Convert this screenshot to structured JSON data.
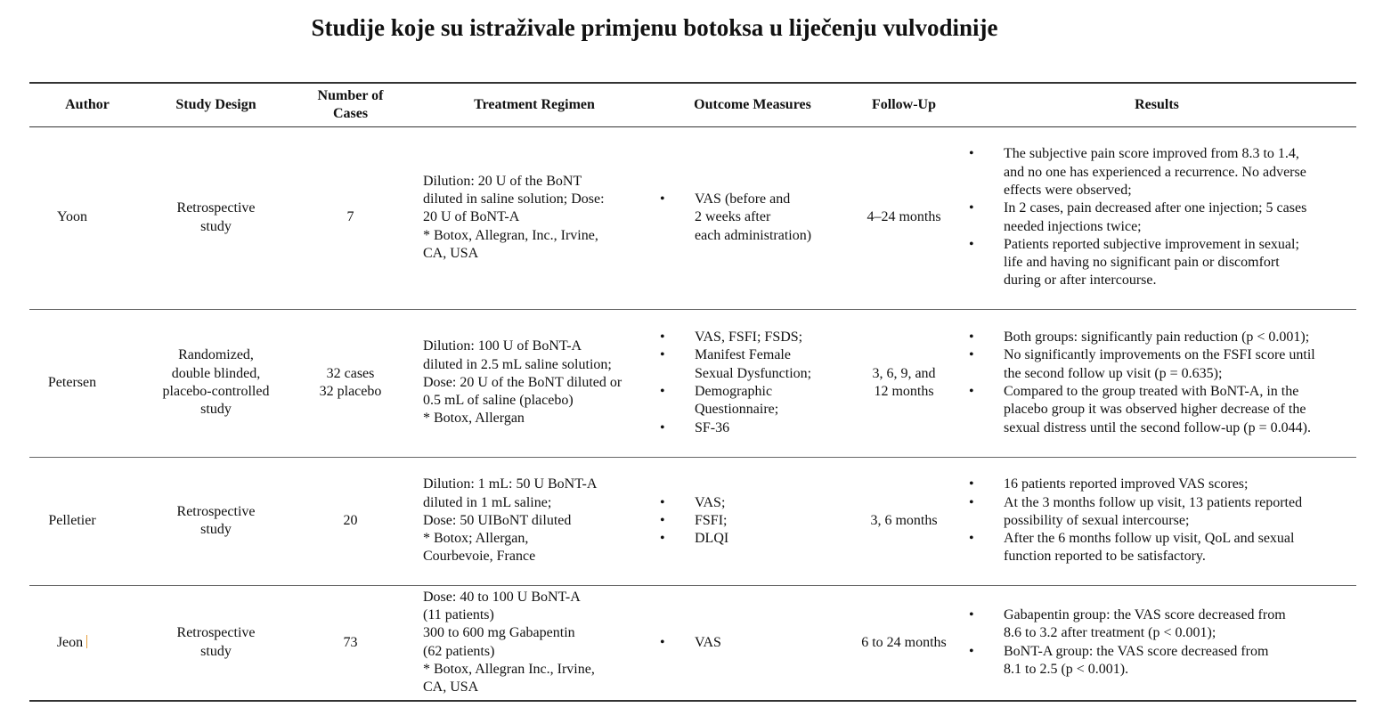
{
  "title": "Studije koje su istraživale primjenu botoksa u liječenju vulvodinije",
  "headers": {
    "author": "Author",
    "design": "Study Design",
    "cases": "Number of\nCases",
    "treatment": "Treatment Regimen",
    "outcome": "Outcome Measures",
    "followup": "Follow-Up",
    "results": "Results"
  },
  "rows": [
    {
      "author": "Yoon",
      "design": "Retrospective\nstudy",
      "cases": "7",
      "treatment": "Dilution: 20 U of the BoNT\ndiluted in saline solution; Dose:\n20 U of BoNT-A\n* Botox, Allegran, Inc., Irvine,\nCA, USA",
      "outcome": [
        "VAS (before and\n2 weeks after\neach administration)"
      ],
      "followup": "4–24 months",
      "results": [
        "The subjective pain score improved from 8.3 to 1.4,\nand no one has experienced a recurrence. No adverse\neffects were observed;",
        "In 2 cases, pain decreased after one injection; 5 cases\nneeded injections twice;",
        "Patients reported subjective improvement in sexual;\nlife and having no significant pain or discomfort\nduring or after intercourse."
      ]
    },
    {
      "author": "Petersen",
      "design": "Randomized,\ndouble blinded,\nplacebo-controlled\nstudy",
      "cases": "32 cases\n32 placebo",
      "treatment": "Dilution: 100 U of BoNT-A\ndiluted in 2.5 mL saline solution;\nDose: 20 U of the BoNT diluted or\n0.5 mL of saline (placebo)\n* Botox, Allergan",
      "outcome": [
        "VAS, FSFI; FSDS;",
        "Manifest Female\nSexual Dysfunction;",
        "Demographic\nQuestionnaire;",
        "SF-36"
      ],
      "followup": "3, 6, 9, and\n12 months",
      "results": [
        "Both groups: significantly pain reduction (p < 0.001);",
        "No significantly improvements on the FSFI score until\nthe second follow up visit (p = 0.635);",
        "Compared to the group treated with BoNT-A, in the\nplacebo group it was observed higher decrease of the\nsexual distress until the second follow-up (p = 0.044)."
      ]
    },
    {
      "author": "Pelletier",
      "design": "Retrospective\nstudy",
      "cases": "20",
      "treatment": "Dilution: 1 mL: 50 U BoNT-A\ndiluted in 1 mL saline;\nDose: 50 UIBoNT diluted\n* Botox; Allergan,\nCourbevoie, France",
      "outcome": [
        "VAS;",
        "FSFI;",
        "DLQI"
      ],
      "followup": "3, 6 months",
      "results": [
        "16 patients reported improved VAS scores;",
        "At the 3 months follow up visit, 13 patients reported\npossibility of sexual intercourse;",
        "After the 6 months follow up visit, QoL and sexual\nfunction reported to be satisfactory."
      ]
    },
    {
      "author": "Jeon",
      "design": "Retrospective\nstudy",
      "cases": "73",
      "treatment": "Dose: 40 to 100 U BoNT-A\n(11 patients)\n300 to 600 mg Gabapentin\n(62 patients)\n* Botox, Allegran Inc., Irvine,\nCA, USA",
      "outcome": [
        "VAS"
      ],
      "followup": "6 to 24 months",
      "results": [
        "Gabapentin group: the VAS score decreased from\n8.6 to 3.2 after treatment (p < 0.001);",
        "BoNT-A group: the VAS score decreased from\n8.1 to 2.5 (p < 0.001)."
      ]
    }
  ]
}
